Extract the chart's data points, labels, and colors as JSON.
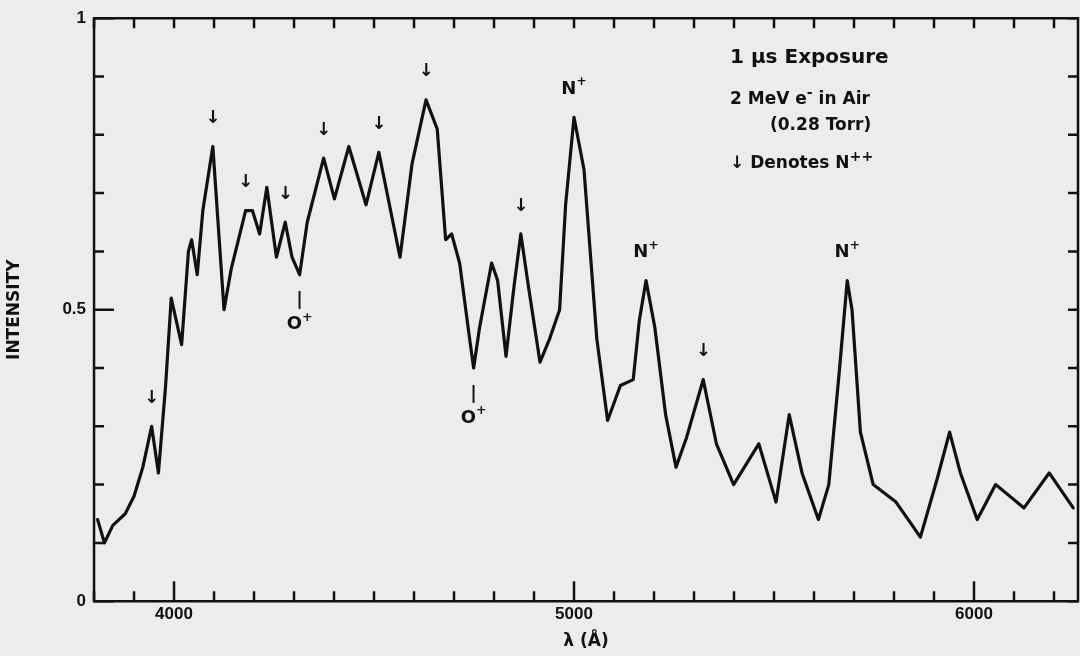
{
  "chart_data": {
    "type": "line",
    "xlabel": "λ (Å)",
    "ylabel": "INTENSITY",
    "xlim": [
      3800,
      6260
    ],
    "ylim": [
      0,
      1
    ],
    "xticks": [
      {
        "value": 3800,
        "label": null
      },
      {
        "value": 3900,
        "label": null
      },
      4000,
      {
        "value": 4100,
        "label": null
      },
      {
        "value": 4200,
        "label": null
      },
      {
        "value": 4300,
        "label": null
      },
      {
        "value": 4400,
        "label": null
      },
      {
        "value": 4500,
        "label": null
      },
      {
        "value": 4600,
        "label": null
      },
      {
        "value": 4700,
        "label": null
      },
      {
        "value": 4800,
        "label": null
      },
      {
        "value": 4900,
        "label": null
      },
      5000,
      {
        "value": 5100,
        "label": null
      },
      {
        "value": 5200,
        "label": null
      },
      {
        "value": 5300,
        "label": null
      },
      {
        "value": 5400,
        "label": null
      },
      {
        "value": 5500,
        "label": null
      },
      {
        "value": 5600,
        "label": null
      },
      {
        "value": 5700,
        "label": null
      },
      {
        "value": 5800,
        "label": null
      },
      {
        "value": 5900,
        "label": null
      },
      6000,
      {
        "value": 6100,
        "label": null
      },
      {
        "value": 6200,
        "label": null
      }
    ],
    "yticks": [
      0,
      {
        "value": 0.1,
        "label": null
      },
      {
        "value": 0.2,
        "label": null
      },
      {
        "value": 0.3,
        "label": null
      },
      {
        "value": 0.4,
        "label": null
      },
      0.5,
      {
        "value": 0.6,
        "label": null
      },
      {
        "value": 0.7,
        "label": null
      },
      {
        "value": 0.8,
        "label": null
      },
      {
        "value": 0.9,
        "label": null
      },
      1
    ],
    "grid": false,
    "legend": false,
    "marker": "none",
    "line_style": "solid",
    "series": [
      {
        "color": "#111111",
        "x": [
          3809,
          3826,
          3847,
          3878,
          3900,
          3922,
          3944,
          3961,
          3979,
          3993,
          4019,
          4036,
          4044,
          4058,
          4072,
          4097,
          4125,
          4143,
          4179,
          4196,
          4214,
          4232,
          4256,
          4278,
          4295,
          4314,
          4333,
          4374,
          4401,
          4437,
          4480,
          4512,
          4565,
          4595,
          4630,
          4658,
          4679,
          4694,
          4714,
          4739,
          4749,
          4764,
          4794,
          4809,
          4830,
          4850,
          4867,
          4886,
          4915,
          4939,
          4964,
          4979,
          5000,
          5025,
          5057,
          5084,
          5116,
          5148,
          5163,
          5180,
          5202,
          5229,
          5255,
          5281,
          5323,
          5356,
          5399,
          5462,
          5505,
          5538,
          5570,
          5611,
          5637,
          5664,
          5683,
          5695,
          5716,
          5748,
          5805,
          5866,
          5908,
          5939,
          5966,
          6008,
          6054,
          6125,
          6188,
          6248
        ],
        "values": [
          0.14,
          0.1,
          0.13,
          0.15,
          0.18,
          0.23,
          0.3,
          0.22,
          0.37,
          0.52,
          0.44,
          0.6,
          0.62,
          0.56,
          0.67,
          0.78,
          0.5,
          0.57,
          0.67,
          0.67,
          0.63,
          0.71,
          0.59,
          0.65,
          0.59,
          0.56,
          0.65,
          0.76,
          0.69,
          0.78,
          0.68,
          0.77,
          0.59,
          0.75,
          0.86,
          0.81,
          0.62,
          0.63,
          0.58,
          0.45,
          0.4,
          0.47,
          0.58,
          0.55,
          0.42,
          0.54,
          0.63,
          0.54,
          0.41,
          0.45,
          0.5,
          0.68,
          0.83,
          0.74,
          0.45,
          0.31,
          0.37,
          0.38,
          0.48,
          0.55,
          0.47,
          0.32,
          0.23,
          0.28,
          0.38,
          0.27,
          0.2,
          0.27,
          0.17,
          0.32,
          0.22,
          0.14,
          0.2,
          0.4,
          0.55,
          0.5,
          0.29,
          0.2,
          0.17,
          0.11,
          0.21,
          0.29,
          0.22,
          0.14,
          0.2,
          0.16,
          0.22,
          0.16
        ]
      }
    ],
    "annotations": [
      "1 μs Exposure",
      "2 MeV e$^{-}$ in Air",
      "(0.28 Torr)",
      "↓ Denotes N$^{++}$",
      {
        "text": "↓",
        "x": 3944,
        "y": 0.3
      },
      {
        "text": "↓",
        "x": 4097,
        "y": 0.78
      },
      {
        "text": "↓",
        "x": 4179,
        "y": 0.67
      },
      {
        "text": "↓",
        "x": 4278,
        "y": 0.65
      },
      {
        "text": "↓",
        "x": 4374,
        "y": 0.76
      },
      {
        "text": "↓",
        "x": 4512,
        "y": 0.77
      },
      {
        "text": "↓",
        "x": 4630,
        "y": 0.86
      },
      {
        "text": "↓",
        "x": 4867,
        "y": 0.63
      },
      {
        "text": "↓",
        "x": 5323,
        "y": 0.38
      },
      {
        "text": "|",
        "x": 4314,
        "y": 0.56
      },
      {
        "text": "O$^{+}$",
        "x": 4314,
        "y": 0.56
      },
      {
        "text": "|",
        "x": 4749,
        "y": 0.4
      },
      {
        "text": "O$^{+}$",
        "x": 4749,
        "y": 0.4
      },
      {
        "text": "N$^{+}$",
        "x": 5000,
        "y": 0.83
      },
      {
        "text": "N$^{+}$",
        "x": 5180,
        "y": 0.55
      },
      {
        "text": "N$^{+}$",
        "x": 5683,
        "y": 0.55
      }
    ]
  }
}
